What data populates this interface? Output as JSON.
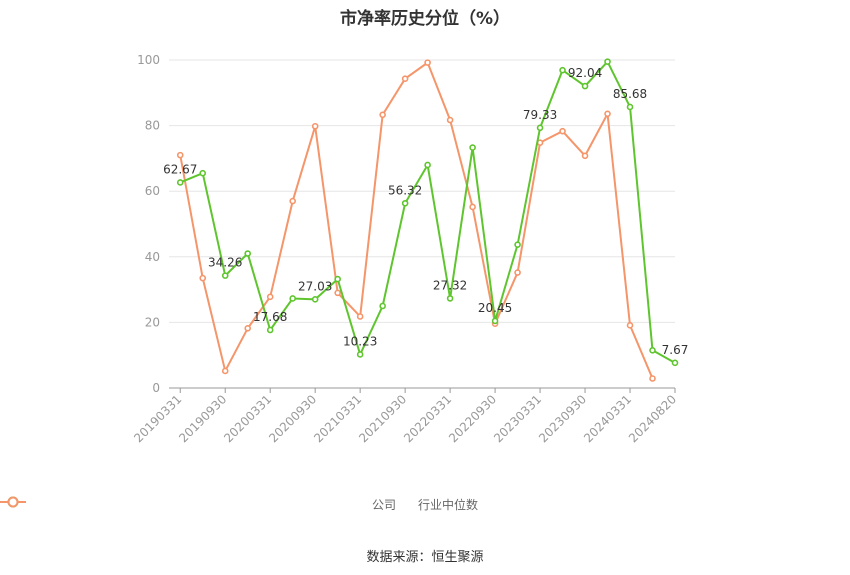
{
  "chart_data": {
    "type": "line",
    "title": "市净率历史分位（%）",
    "ylim": [
      0,
      100
    ],
    "yticks": [
      0,
      20,
      40,
      60,
      80,
      100
    ],
    "x_tick_labels": [
      "20190331",
      "20190930",
      "20200331",
      "20200930",
      "20210331",
      "20210930",
      "20220331",
      "20220930",
      "20230331",
      "20230930",
      "20240331",
      "20240820"
    ],
    "x": [
      "20190331",
      "20190630",
      "20190930",
      "20191231",
      "20200331",
      "20200630",
      "20200930",
      "20201231",
      "20210331",
      "20210630",
      "20210930",
      "20211231",
      "20220331",
      "20220630",
      "20220930",
      "20221231",
      "20230331",
      "20230630",
      "20230930",
      "20231231",
      "20240331",
      "20240630",
      "20240820"
    ],
    "grid": true,
    "legend_position": "bottom",
    "series": [
      {
        "name": "公司",
        "color": "#5fc52e",
        "values": [
          62.67,
          65.5,
          34.26,
          41.0,
          17.68,
          27.3,
          27.03,
          33.2,
          10.23,
          25.0,
          56.32,
          68.0,
          27.32,
          73.3,
          20.45,
          43.7,
          79.33,
          96.9,
          92.04,
          99.5,
          85.68,
          11.5,
          7.67
        ],
        "labels": {
          "0": "62.67",
          "2": "34.26",
          "4": "17.68",
          "6": "27.03",
          "8": "10.23",
          "10": "56.32",
          "12": "27.32",
          "14": "20.45",
          "16": "79.33",
          "18": "92.04",
          "20": "85.68",
          "22": "7.67"
        }
      },
      {
        "name": "行业中位数",
        "color": "#f5956a",
        "values": [
          71.0,
          33.5,
          5.2,
          18.2,
          27.8,
          57.0,
          79.8,
          29.0,
          21.8,
          83.3,
          94.3,
          99.2,
          81.7,
          55.2,
          19.6,
          35.2,
          74.8,
          78.3,
          70.8,
          83.6,
          19.1,
          2.9,
          null
        ]
      }
    ]
  },
  "source": "数据来源：恒生聚源"
}
